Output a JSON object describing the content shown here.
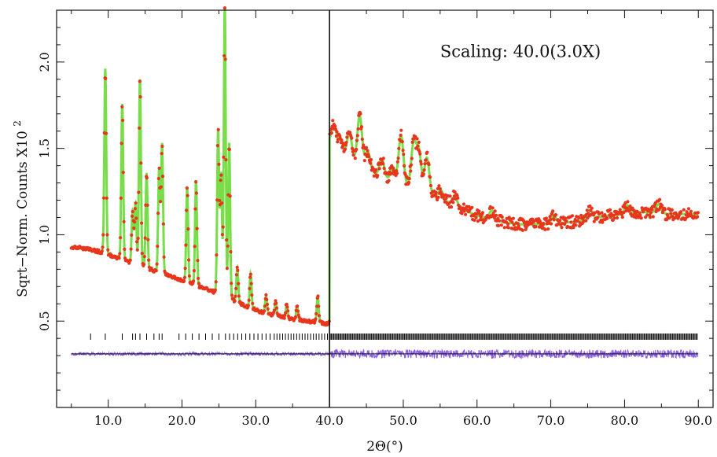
{
  "chart_data": {
    "type": "scatter",
    "title": "",
    "xlabel": "2Θ(°)",
    "ylabel": "Sqrt−Norm. Counts X10",
    "ylabel_superscript": "2",
    "annotation": "Scaling: 40.0(3.0X)",
    "xlim": [
      3.0,
      92.0
    ],
    "ylim": [
      0.0,
      2.3
    ],
    "x_ticks": [
      10,
      20,
      30,
      40,
      50,
      60,
      70,
      80,
      90
    ],
    "x_tick_labels": [
      "10.0",
      "20.0",
      "30.0",
      "40.0",
      "50.0",
      "60.0",
      "70.0",
      "80.0",
      "90.0"
    ],
    "y_ticks": [
      0.5,
      1.0,
      1.5,
      2.0
    ],
    "y_tick_labels": [
      "0.5",
      "1.0",
      "1.5",
      "2.0"
    ],
    "scale_break_x": 40.0,
    "scale_factor_above_break": 3.0,
    "grid": false,
    "legend": "none",
    "background_curve": {
      "x": [
        5,
        7,
        9,
        11,
        13,
        15,
        17,
        19,
        21,
        23,
        25,
        27,
        29,
        31,
        33,
        35,
        37,
        39,
        40,
        40.01,
        42,
        44,
        46,
        48,
        50,
        52,
        54,
        56,
        58,
        60,
        62,
        64,
        66,
        68,
        70,
        72,
        74,
        76,
        78,
        80,
        82,
        84,
        86,
        88,
        90
      ],
      "y": [
        0.93,
        0.92,
        0.9,
        0.87,
        0.84,
        0.81,
        0.78,
        0.75,
        0.72,
        0.69,
        0.66,
        0.62,
        0.58,
        0.55,
        0.53,
        0.51,
        0.5,
        0.49,
        0.48,
        1.54,
        1.46,
        1.41,
        1.36,
        1.32,
        1.29,
        1.27,
        1.23,
        1.19,
        1.15,
        1.11,
        1.09,
        1.07,
        1.06,
        1.06,
        1.06,
        1.07,
        1.08,
        1.1,
        1.11,
        1.12,
        1.13,
        1.13,
        1.12,
        1.12,
        1.12
      ]
    },
    "peaks": {
      "x": [
        9.6,
        11.9,
        13.3,
        13.7,
        14.3,
        15.2,
        16.9,
        17.3,
        20.7,
        21.9,
        24.9,
        25.3,
        25.8,
        26.4,
        27.5,
        29.3,
        31.4,
        32.7,
        34.2,
        35.6,
        38.4,
        40.6,
        41.5,
        42.7,
        44.1,
        45.2,
        47.1,
        48.6,
        49.7,
        51.4,
        52.1,
        53.2,
        55.1,
        57.0,
        62.0,
        70.4,
        75.3,
        80.3,
        84.6
      ],
      "height": [
        1.07,
        0.9,
        0.3,
        0.35,
        1.08,
        0.55,
        0.6,
        0.75,
        0.55,
        0.6,
        0.95,
        0.7,
        1.67,
        0.9,
        0.2,
        0.2,
        0.1,
        0.08,
        0.08,
        0.08,
        0.15,
        0.12,
        0.08,
        0.15,
        0.28,
        0.1,
        0.1,
        0.08,
        0.28,
        0.25,
        0.22,
        0.2,
        0.05,
        0.05,
        0.05,
        0.05,
        0.05,
        0.05,
        0.05
      ]
    },
    "reflection_tick_marks_y": 0.41,
    "difference_curve_baseline": 0.31,
    "series": [
      {
        "role": "observed",
        "marker": "dot",
        "color": "#e8361c"
      },
      {
        "role": "calculated",
        "marker": "line",
        "color": "#79dd4a"
      },
      {
        "role": "reflection positions",
        "marker": "vertical tick",
        "color": "#000000"
      },
      {
        "role": "difference",
        "marker": "line",
        "color": "#8a5ce6"
      }
    ]
  }
}
